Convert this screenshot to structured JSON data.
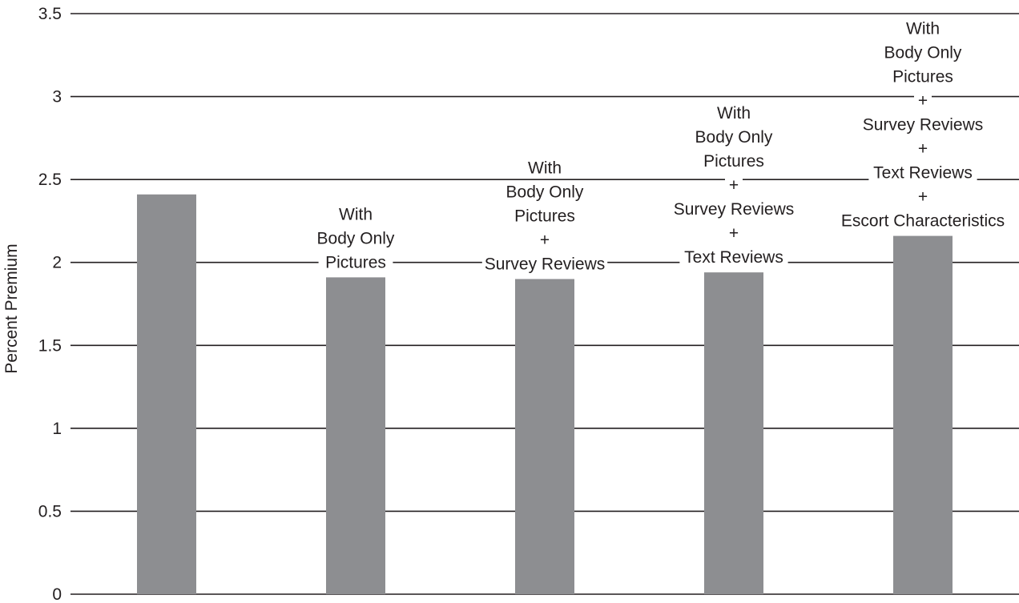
{
  "chart_data": {
    "type": "bar",
    "title": "",
    "xlabel": "",
    "ylabel": "Percent Premium",
    "ylim": [
      0,
      3.5
    ],
    "yticks": [
      0,
      0.5,
      1,
      1.5,
      2,
      2.5,
      3,
      3.5
    ],
    "ytick_labels": [
      "0",
      "0.5",
      "1",
      "1.5",
      "2",
      "2.5",
      "3",
      "3.5"
    ],
    "grid": true,
    "bar_color": "#8d8e91",
    "categories": [
      [],
      [
        "With",
        "Body Only",
        "Pictures"
      ],
      [
        "With",
        "Body Only",
        "Pictures",
        "+",
        "Survey Reviews"
      ],
      [
        "With",
        "Body Only",
        "Pictures",
        "+",
        "Survey Reviews",
        "+",
        "Text Reviews"
      ],
      [
        "With",
        "Body Only",
        "Pictures",
        "+",
        "Survey Reviews",
        "+",
        "Text Reviews",
        "+",
        "Escort Characteristics"
      ]
    ],
    "values": [
      2.41,
      1.91,
      1.9,
      1.94,
      2.16
    ]
  }
}
